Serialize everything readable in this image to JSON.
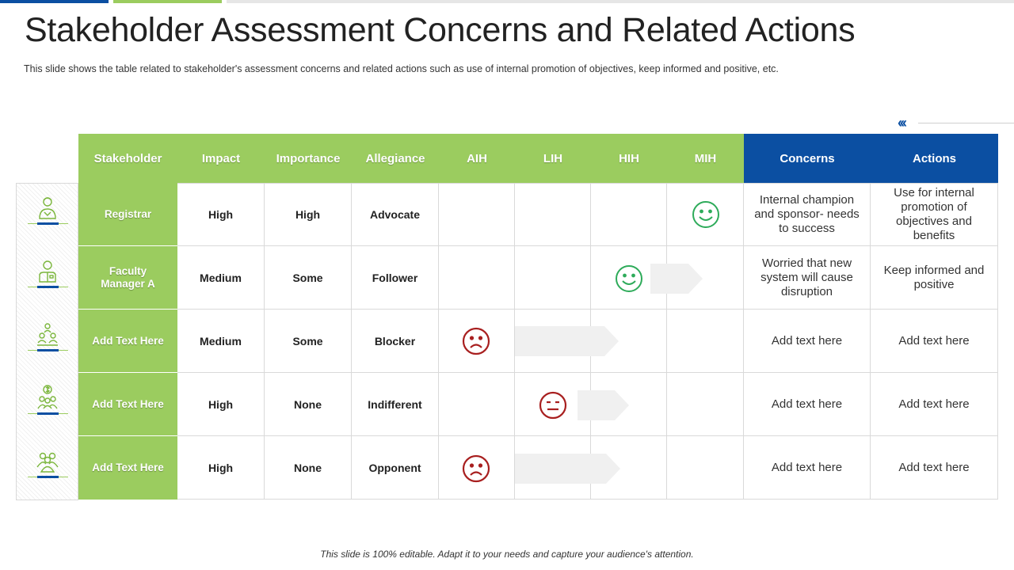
{
  "title": "Stakeholder Assessment Concerns and Related Actions",
  "subtitle": "This slide shows the table related to stakeholder's assessment concerns and related actions such as use of internal promotion of objectives, keep informed and positive, etc.",
  "nav_icon": "double-chevron-left-icon",
  "colors": {
    "green": "#9bcc5f",
    "blue": "#0b4fa2",
    "happy": "#2eab5a",
    "sad": "#a81f1f"
  },
  "headers": [
    "Stakeholder",
    "Impact",
    "Importance",
    "Allegiance",
    "AIH",
    "LIH",
    "HIH",
    "MIH",
    "Concerns",
    "Actions"
  ],
  "rows": [
    {
      "icon": "registrar-person-icon",
      "stakeholder": "Registrar",
      "impact": "High",
      "importance": "High",
      "allegiance": "Advocate",
      "face": "happy",
      "face_column": "MIH",
      "concerns": "Internal champion and sponsor- needs to success",
      "actions": "Use for internal promotion of objectives and benefits"
    },
    {
      "icon": "manager-person-icon",
      "stakeholder": "Faculty Manager A",
      "impact": "Medium",
      "importance": "Some",
      "allegiance": "Follower",
      "face": "happy",
      "face_column": "HIH",
      "concerns": "Worried that new system will cause disruption",
      "actions": "Keep informed and positive"
    },
    {
      "icon": "team-hierarchy-icon",
      "stakeholder": "Add Text Here",
      "impact": "Medium",
      "importance": "Some",
      "allegiance": "Blocker",
      "face": "sad",
      "face_column": "AIH",
      "concerns": "Add text here",
      "actions": "Add text here"
    },
    {
      "icon": "money-team-icon",
      "stakeholder": "Add Text Here",
      "impact": "High",
      "importance": "None",
      "allegiance": "Indifferent",
      "face": "neutral",
      "face_column": "LIH",
      "concerns": "Add text here",
      "actions": "Add text here"
    },
    {
      "icon": "group-people-icon",
      "stakeholder": "Add Text Here",
      "impact": "High",
      "importance": "None",
      "allegiance": "Opponent",
      "face": "sad",
      "face_column": "AIH",
      "concerns": "Add text here",
      "actions": "Add text here"
    }
  ],
  "footer": "This slide is 100% editable. Adapt it to your needs and capture your audience's attention."
}
